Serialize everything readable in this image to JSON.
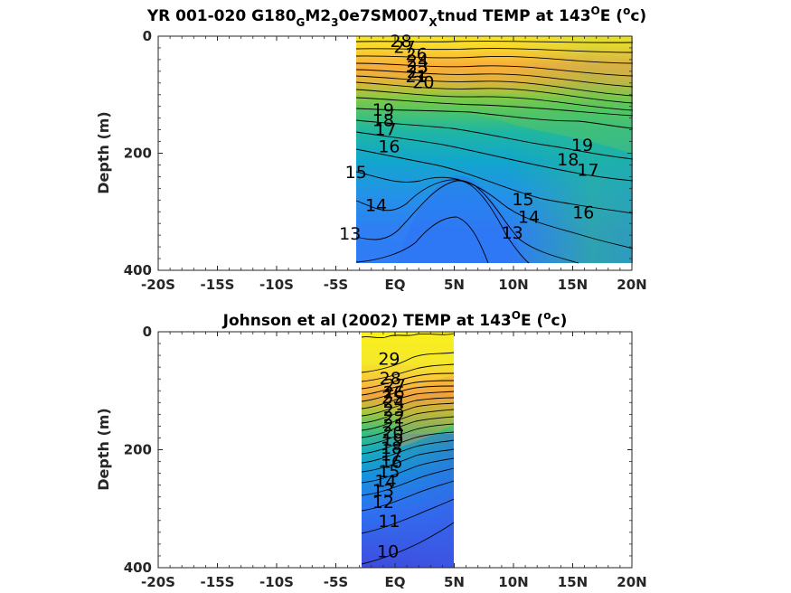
{
  "chart_data": [
    {
      "type": "heatmap",
      "title_parts": [
        "YR 001-020 G180",
        "G",
        "M2",
        "3",
        "0e7SM007",
        "X",
        "tnud TEMP at 143",
        "O",
        "E (",
        "o",
        "c)"
      ],
      "ylabel": "Depth (m)",
      "ylim": [
        400,
        0
      ],
      "yticks": [
        0,
        200,
        400
      ],
      "xlim": [
        -20,
        20
      ],
      "xticks": [
        -20,
        -15,
        -10,
        -5,
        0,
        5,
        10,
        15,
        20
      ],
      "xticklabels": [
        "-20S",
        "-15S",
        "-10S",
        "-5S",
        "EQ",
        "5N",
        "10N",
        "15N",
        "20N"
      ],
      "data_extent": {
        "lat": [
          -3.5,
          20
        ],
        "depth": [
          0,
          385
        ]
      },
      "contour_levels": [
        13,
        14,
        15,
        16,
        17,
        18,
        19,
        20,
        21,
        22,
        23,
        24,
        25,
        26,
        27,
        28
      ],
      "contour_labels": [
        {
          "text": "28",
          "lat": 0.5,
          "depth": 8
        },
        {
          "text": "27",
          "lat": 0.8,
          "depth": 18
        },
        {
          "text": "26",
          "lat": 1.8,
          "depth": 30
        },
        {
          "text": "24",
          "lat": 1.9,
          "depth": 42
        },
        {
          "text": "23",
          "lat": 1.9,
          "depth": 52
        },
        {
          "text": "22",
          "lat": 1.9,
          "depth": 60
        },
        {
          "text": "21",
          "lat": 1.8,
          "depth": 68
        },
        {
          "text": "20",
          "lat": 2.4,
          "depth": 78
        },
        {
          "text": "19",
          "lat": -1.0,
          "depth": 125
        },
        {
          "text": "18",
          "lat": -1.0,
          "depth": 143
        },
        {
          "text": "17",
          "lat": -0.8,
          "depth": 158
        },
        {
          "text": "16",
          "lat": -0.5,
          "depth": 188
        },
        {
          "text": "15",
          "lat": -3.3,
          "depth": 232
        },
        {
          "text": "14",
          "lat": -1.6,
          "depth": 288
        },
        {
          "text": "13",
          "lat": -3.8,
          "depth": 337
        },
        {
          "text": "19",
          "lat": 15.8,
          "depth": 185
        },
        {
          "text": "18",
          "lat": 14.6,
          "depth": 210
        },
        {
          "text": "17",
          "lat": 16.3,
          "depth": 228
        },
        {
          "text": "16",
          "lat": 15.9,
          "depth": 300
        },
        {
          "text": "15",
          "lat": 10.8,
          "depth": 278
        },
        {
          "text": "14",
          "lat": 11.3,
          "depth": 308
        },
        {
          "text": "13",
          "lat": 9.9,
          "depth": 335
        }
      ]
    },
    {
      "type": "heatmap",
      "title_parts": [
        "Johnson et al (2002) TEMP at 143",
        "O",
        "E (",
        "o",
        "c)"
      ],
      "ylabel": "Depth (m)",
      "ylim": [
        400,
        0
      ],
      "yticks": [
        0,
        200,
        400
      ],
      "xlim": [
        -20,
        20
      ],
      "xticks": [
        -20,
        -15,
        -10,
        -5,
        0,
        5,
        10,
        15,
        20
      ],
      "xticklabels": [
        "-20S",
        "-15S",
        "-10S",
        "-5S",
        "EQ",
        "5N",
        "10N",
        "15N",
        "20N"
      ],
      "data_extent": {
        "lat": [
          -2.5,
          5
        ],
        "depth": [
          0,
          400
        ]
      },
      "contour_levels": [
        10,
        11,
        12,
        13,
        14,
        15,
        16,
        17,
        18,
        19,
        20,
        21,
        22,
        23,
        24,
        25,
        26,
        27,
        28,
        29
      ],
      "contour_labels": [
        {
          "text": "29",
          "lat": -0.5,
          "depth": 45
        },
        {
          "text": "28",
          "lat": -0.4,
          "depth": 78
        },
        {
          "text": "27",
          "lat": 0.0,
          "depth": 90
        },
        {
          "text": "26",
          "lat": -0.1,
          "depth": 102
        },
        {
          "text": "25",
          "lat": -0.2,
          "depth": 110
        },
        {
          "text": "24",
          "lat": -0.1,
          "depth": 118
        },
        {
          "text": "23",
          "lat": -0.1,
          "depth": 132
        },
        {
          "text": "22",
          "lat": -0.1,
          "depth": 145
        },
        {
          "text": "21",
          "lat": -0.1,
          "depth": 158
        },
        {
          "text": "20",
          "lat": -0.2,
          "depth": 170
        },
        {
          "text": "19",
          "lat": -0.2,
          "depth": 182
        },
        {
          "text": "18",
          "lat": -0.3,
          "depth": 196
        },
        {
          "text": "17",
          "lat": -0.3,
          "depth": 208
        },
        {
          "text": "16",
          "lat": -0.3,
          "depth": 220
        },
        {
          "text": "15",
          "lat": -0.5,
          "depth": 236
        },
        {
          "text": "14",
          "lat": -0.8,
          "depth": 252
        },
        {
          "text": "13",
          "lat": -1.0,
          "depth": 268
        },
        {
          "text": "12",
          "lat": -1.0,
          "depth": 288
        },
        {
          "text": "11",
          "lat": -0.5,
          "depth": 320
        },
        {
          "text": "10",
          "lat": -0.6,
          "depth": 372
        }
      ]
    }
  ],
  "colors": {
    "warm": "#f9e21e",
    "orange": "#f9a838",
    "green": "#7ec845",
    "teal": "#1eb8b0",
    "blue": "#2e7ef4",
    "deep_blue": "#3b4fe0",
    "contour": "#000000"
  }
}
